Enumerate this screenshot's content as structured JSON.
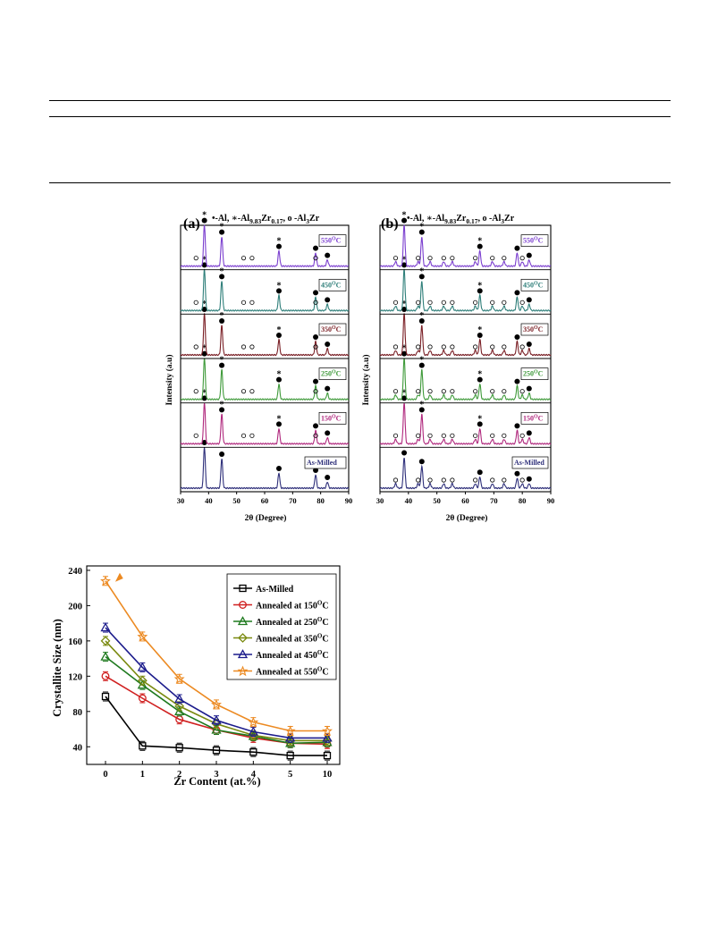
{
  "table_rules": true,
  "xrd": {
    "x_label": "2θ (Degree)",
    "y_label": "Intensity (a.u)",
    "xticks": [
      "30",
      "40",
      "50",
      "60",
      "70",
      "80",
      "90"
    ],
    "panels": [
      {
        "label": "(a)",
        "legend_parts": [
          "•-Al, ",
          "∗-Al",
          "9.83",
          "Zr",
          "0.17",
          ", o -Al",
          "3",
          "Zr"
        ],
        "traces": [
          {
            "name": "As-Milled",
            "color": "#2e2f7a"
          },
          {
            "name": "150",
            "color": "#b0287d"
          },
          {
            "name": "250",
            "color": "#3f9a3a"
          },
          {
            "name": "350",
            "color": "#7a1f25"
          },
          {
            "name": "450",
            "color": "#2f7f7a"
          },
          {
            "name": "550",
            "color": "#7b3fcf"
          }
        ]
      },
      {
        "label": "(b)",
        "legend_parts": [
          "•-Al, ",
          "∗-Al",
          "9.83",
          "Zr",
          "0.17",
          ", o -Al",
          "3",
          "Zr"
        ],
        "traces": [
          {
            "name": "As-Milled",
            "color": "#2e2f7a"
          },
          {
            "name": "150",
            "color": "#b0287d"
          },
          {
            "name": "250",
            "color": "#3f9a3a"
          },
          {
            "name": "350",
            "color": "#7a1f25"
          },
          {
            "name": "450",
            "color": "#2f7f7a"
          },
          {
            "name": "550",
            "color": "#7b3fcf"
          }
        ]
      }
    ],
    "deg_suffix": "C",
    "deg_sup": "O"
  },
  "chart_data": {
    "type": "line",
    "title": "",
    "xlabel": "Zr Content (at.%)",
    "ylabel": "Crystallite Size (nm)",
    "categories": [
      "0",
      "1",
      "2",
      "3",
      "4",
      "5",
      "10"
    ],
    "ylim": [
      20,
      245
    ],
    "yticks": [
      "40",
      "80",
      "120",
      "160",
      "200",
      "240"
    ],
    "legend_position": "top-right",
    "series": [
      {
        "name": "As-Milled",
        "color": "#000000",
        "marker": "square",
        "values": [
          97,
          41,
          39,
          36,
          34,
          30,
          30
        ]
      },
      {
        "name": "Annealed at 150",
        "sup": "O",
        "suffix": "C",
        "color": "#d02020",
        "marker": "circle",
        "values": [
          120,
          95,
          71,
          59,
          50,
          44,
          43
        ]
      },
      {
        "name": "Annealed at 250",
        "sup": "O",
        "suffix": "C",
        "color": "#1f7a1f",
        "marker": "triangle",
        "values": [
          142,
          110,
          80,
          59,
          52,
          44,
          45
        ]
      },
      {
        "name": "Annealed at 350",
        "sup": "O",
        "suffix": "C",
        "color": "#7a8a10",
        "marker": "diamond",
        "values": [
          160,
          115,
          86,
          66,
          53,
          47,
          47
        ]
      },
      {
        "name": "Annealed at 450",
        "sup": "O",
        "suffix": "C",
        "color": "#1c1c8c",
        "marker": "triangle",
        "values": [
          175,
          130,
          94,
          70,
          57,
          50,
          50
        ]
      },
      {
        "name": "Annealed at 550",
        "sup": "O",
        "suffix": "C",
        "color": "#ec8a22",
        "marker": "star",
        "values": [
          228,
          165,
          117,
          88,
          68,
          58,
          58
        ]
      }
    ]
  }
}
